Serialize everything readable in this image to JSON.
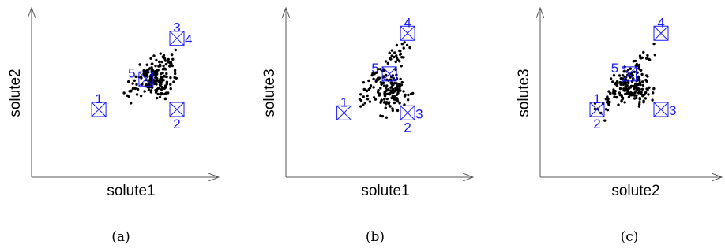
{
  "colors": {
    "points": "#000000",
    "markers": "#1a1aff",
    "axes": "#555555"
  },
  "chart_data": [
    {
      "type": "scatter",
      "caption": "(a)",
      "xlabel": "solute1",
      "ylabel": "solute2",
      "markers": [
        {
          "label": "1",
          "x": 0.37,
          "y": 0.4,
          "label_pos": "above"
        },
        {
          "label": "2",
          "x": 0.8,
          "y": 0.4,
          "label_pos": "below"
        },
        {
          "label": "3",
          "x": 0.8,
          "y": 0.82,
          "label_pos": "above"
        },
        {
          "label": "4",
          "x": 0.8,
          "y": 0.82,
          "label_pos": "right"
        },
        {
          "label": "5",
          "x": 0.63,
          "y": 0.58,
          "label_pos": "above-left"
        }
      ],
      "cluster": {
        "center": [
          0.7,
          0.58
        ],
        "spread": [
          0.045,
          0.055
        ],
        "tail_start": [
          0.5,
          0.46
        ],
        "tail_end": [
          0.78,
          0.72
        ],
        "count": 190,
        "seed": 11
      }
    },
    {
      "type": "scatter",
      "caption": "(b)",
      "xlabel": "solute1",
      "ylabel": "solute3",
      "markers": [
        {
          "label": "1",
          "x": 0.32,
          "y": 0.38,
          "label_pos": "above"
        },
        {
          "label": "2",
          "x": 0.67,
          "y": 0.38,
          "label_pos": "below"
        },
        {
          "label": "3",
          "x": 0.67,
          "y": 0.38,
          "label_pos": "right"
        },
        {
          "label": "4",
          "x": 0.67,
          "y": 0.85,
          "label_pos": "above"
        },
        {
          "label": "5",
          "x": 0.57,
          "y": 0.61,
          "label_pos": "above-left"
        }
      ],
      "cluster": {
        "center": [
          0.58,
          0.5
        ],
        "spread": [
          0.045,
          0.055
        ],
        "tail_start": [
          0.4,
          0.44
        ],
        "tail_end": [
          0.66,
          0.78
        ],
        "count": 190,
        "seed": 23
      }
    },
    {
      "type": "scatter",
      "caption": "(c)",
      "xlabel": "solute2",
      "ylabel": "solute3",
      "markers": [
        {
          "label": "1",
          "x": 0.32,
          "y": 0.4,
          "label_pos": "above"
        },
        {
          "label": "2",
          "x": 0.32,
          "y": 0.4,
          "label_pos": "below"
        },
        {
          "label": "3",
          "x": 0.68,
          "y": 0.4,
          "label_pos": "right"
        },
        {
          "label": "4",
          "x": 0.68,
          "y": 0.85,
          "label_pos": "above"
        },
        {
          "label": "5",
          "x": 0.5,
          "y": 0.61,
          "label_pos": "above-left"
        }
      ],
      "cluster": {
        "center": [
          0.52,
          0.52
        ],
        "spread": [
          0.05,
          0.05
        ],
        "tail_start": [
          0.34,
          0.4
        ],
        "tail_end": [
          0.62,
          0.76
        ],
        "count": 200,
        "seed": 37
      }
    }
  ]
}
